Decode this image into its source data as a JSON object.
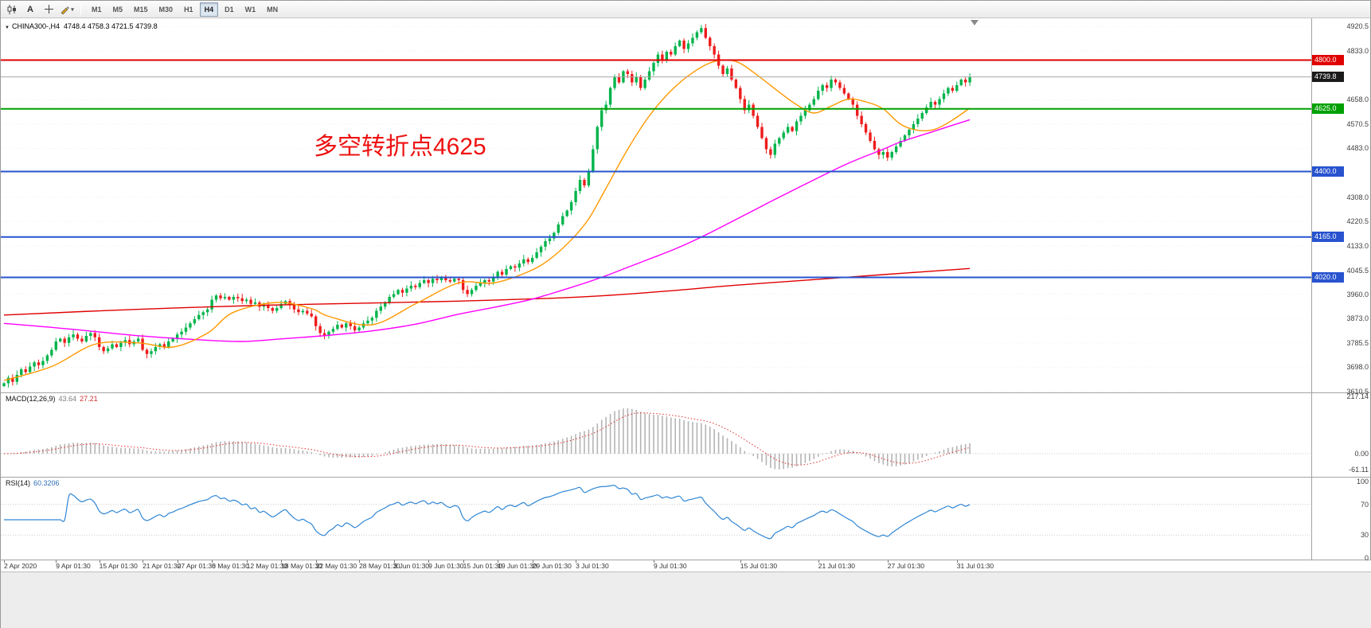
{
  "toolbar": {
    "tools": [
      {
        "name": "chart-type",
        "label": ""
      },
      {
        "name": "text-label",
        "label": "A"
      },
      {
        "name": "crosshair",
        "label": ""
      },
      {
        "name": "draw",
        "label": ""
      }
    ],
    "timeframes": [
      {
        "label": "M1",
        "active": false
      },
      {
        "label": "M5",
        "active": false
      },
      {
        "label": "M15",
        "active": false
      },
      {
        "label": "M30",
        "active": false
      },
      {
        "label": "H1",
        "active": false
      },
      {
        "label": "H4",
        "active": true
      },
      {
        "label": "D1",
        "active": false
      },
      {
        "label": "W1",
        "active": false
      },
      {
        "label": "MN",
        "active": false
      }
    ]
  },
  "symbol_line": {
    "icon": "▼",
    "symbol": "CHINA300-,H4",
    "ohlc": "4748.4 4758.3 4721.5 4739.8"
  },
  "main_chart": {
    "annotation": {
      "text": "多空转折点4625",
      "color": "#ee1111"
    },
    "hlines": [
      {
        "price": 4800,
        "color": "#e00000",
        "width": 2,
        "badge": "4800.0",
        "badge_bg": "#e00000"
      },
      {
        "price": 4739.8,
        "color": "#a8a8a8",
        "width": 1,
        "badge": "4739.8",
        "badge_bg": "#1a1a1a"
      },
      {
        "price": 4625,
        "color": "#00a000",
        "width": 2,
        "badge": "4625.0",
        "badge_bg": "#00a000"
      },
      {
        "price": 4400,
        "color": "#2753cf",
        "width": 2,
        "badge": "4400.0",
        "badge_bg": "#2753cf"
      },
      {
        "price": 4165,
        "color": "#2753cf",
        "width": 2,
        "badge": "4165.0",
        "badge_bg": "#2753cf"
      },
      {
        "price": 4020,
        "color": "#2753cf",
        "width": 2,
        "badge": "4020.0",
        "badge_bg": "#2753cf"
      }
    ],
    "axis_labels": [
      {
        "text": "4920.5",
        "value": 4920.5
      },
      {
        "text": "4833.0",
        "value": 4833
      },
      {
        "text": "4658.0",
        "value": 4658
      },
      {
        "text": "4570.5",
        "value": 4570.5
      },
      {
        "text": "4483.0",
        "value": 4483
      },
      {
        "text": "4308.0",
        "value": 4308
      },
      {
        "text": "4220.5",
        "value": 4220.5
      },
      {
        "text": "4133.0",
        "value": 4133
      },
      {
        "text": "4045.5",
        "value": 4045.5
      },
      {
        "text": "3960.0",
        "value": 3960
      },
      {
        "text": "3873.0",
        "value": 3873
      },
      {
        "text": "3785.5",
        "value": 3785.5
      },
      {
        "text": "3698.0",
        "value": 3698
      },
      {
        "text": "3610.5",
        "value": 3610.5
      }
    ]
  },
  "macd_panel": {
    "title": "MACD(12,26,9)",
    "value_main": "43.64",
    "value_signal": "27.21",
    "axis": [
      {
        "text": "217.14",
        "value": 217.14
      },
      {
        "text": "0.00",
        "value": 0
      },
      {
        "text": "-61.11",
        "value": -61.11
      }
    ]
  },
  "rsi_panel": {
    "title": "RSI(14)",
    "value": "60.3206",
    "axis": [
      {
        "text": "100",
        "value": 100
      },
      {
        "text": "70",
        "value": 70
      },
      {
        "text": "30",
        "value": 30
      },
      {
        "text": "0",
        "value": 0
      }
    ],
    "levels": [
      70,
      30
    ]
  },
  "chart_data": {
    "type": "candlestick",
    "symbol": "CHINA300-",
    "timeframe": "H4",
    "current_bar": {
      "open": 4748.4,
      "high": 4758.3,
      "low": 4721.5,
      "close": 4739.8
    },
    "y_range": [
      3607,
      4950
    ],
    "up_color": "#00b44b",
    "down_color": "#ee1c1c",
    "first_open": 3630,
    "closes": [
      3640,
      3660,
      3645,
      3670,
      3690,
      3680,
      3700,
      3715,
      3705,
      3720,
      3740,
      3760,
      3790,
      3800,
      3785,
      3805,
      3815,
      3800,
      3790,
      3810,
      3820,
      3805,
      3770,
      3755,
      3765,
      3780,
      3770,
      3785,
      3795,
      3780,
      3790,
      3800,
      3760,
      3745,
      3755,
      3770,
      3780,
      3770,
      3790,
      3800,
      3815,
      3825,
      3840,
      3855,
      3870,
      3885,
      3895,
      3905,
      3940,
      3955,
      3945,
      3950,
      3940,
      3950,
      3945,
      3935,
      3940,
      3925,
      3930,
      3915,
      3920,
      3910,
      3900,
      3910,
      3925,
      3935,
      3920,
      3905,
      3895,
      3900,
      3890,
      3880,
      3845,
      3820,
      3810,
      3825,
      3835,
      3850,
      3840,
      3855,
      3845,
      3830,
      3840,
      3855,
      3865,
      3875,
      3900,
      3915,
      3930,
      3950,
      3960,
      3975,
      3965,
      3980,
      3990,
      3985,
      4000,
      4010,
      4000,
      4015,
      4010,
      4020,
      4010,
      4005,
      4015,
      4010,
      3975,
      3960,
      3975,
      3990,
      4000,
      4010,
      4005,
      4020,
      4040,
      4030,
      4050,
      4060,
      4055,
      4070,
      4085,
      4075,
      4090,
      4110,
      4130,
      4150,
      4160,
      4180,
      4210,
      4240,
      4260,
      4290,
      4330,
      4370,
      4350,
      4400,
      4480,
      4560,
      4620,
      4640,
      4700,
      4740,
      4720,
      4760,
      4750,
      4720,
      4740,
      4700,
      4730,
      4760,
      4790,
      4820,
      4800,
      4830,
      4820,
      4850,
      4870,
      4840,
      4860,
      4880,
      4900,
      4915,
      4880,
      4850,
      4820,
      4780,
      4750,
      4770,
      4730,
      4700,
      4660,
      4620,
      4640,
      4600,
      4560,
      4520,
      4480,
      4460,
      4500,
      4520,
      4540,
      4560,
      4545,
      4580,
      4600,
      4620,
      4640,
      4660,
      4690,
      4710,
      4700,
      4730,
      4720,
      4700,
      4680,
      4660,
      4640,
      4600,
      4570,
      4540,
      4510,
      4480,
      4460,
      4470,
      4450,
      4470,
      4490,
      4510,
      4530,
      4550,
      4570,
      4590,
      4610,
      4630,
      4650,
      4640,
      4660,
      4680,
      4700,
      4690,
      4710,
      4730,
      4720,
      4740
    ],
    "ma_fast": {
      "name": "fast MA",
      "color": "#ff9900",
      "points": [
        [
          0,
          3650
        ],
        [
          11,
          3700
        ],
        [
          21,
          3780
        ],
        [
          31,
          3785
        ],
        [
          39,
          3770
        ],
        [
          47,
          3820
        ],
        [
          53,
          3895
        ],
        [
          63,
          3930
        ],
        [
          71,
          3908
        ],
        [
          75,
          3880
        ],
        [
          85,
          3850
        ],
        [
          95,
          3925
        ],
        [
          105,
          4000
        ],
        [
          113,
          4000
        ],
        [
          121,
          4040
        ],
        [
          126,
          4085
        ],
        [
          131,
          4155
        ],
        [
          135,
          4230
        ],
        [
          139,
          4340
        ],
        [
          144,
          4480
        ],
        [
          149,
          4600
        ],
        [
          154,
          4690
        ],
        [
          159,
          4755
        ],
        [
          164,
          4795
        ],
        [
          169,
          4795
        ],
        [
          174,
          4745
        ],
        [
          179,
          4685
        ],
        [
          183,
          4640
        ],
        [
          187,
          4610
        ],
        [
          191,
          4635
        ],
        [
          195,
          4660
        ],
        [
          199,
          4650
        ],
        [
          203,
          4625
        ],
        [
          207,
          4570
        ],
        [
          211,
          4548
        ],
        [
          215,
          4552
        ],
        [
          219,
          4585
        ],
        [
          223,
          4628
        ]
      ]
    },
    "ma_mid": {
      "name": "mid MA",
      "color": "#ff00ff",
      "points": [
        [
          0,
          3855
        ],
        [
          15,
          3835
        ],
        [
          30,
          3812
        ],
        [
          45,
          3796
        ],
        [
          55,
          3790
        ],
        [
          63,
          3798
        ],
        [
          75,
          3812
        ],
        [
          85,
          3828
        ],
        [
          95,
          3852
        ],
        [
          105,
          3888
        ],
        [
          113,
          3912
        ],
        [
          121,
          3938
        ],
        [
          126,
          3960
        ],
        [
          131,
          3984
        ],
        [
          135,
          4004
        ],
        [
          139,
          4026
        ],
        [
          144,
          4056
        ],
        [
          149,
          4086
        ],
        [
          154,
          4116
        ],
        [
          159,
          4150
        ],
        [
          164,
          4188
        ],
        [
          169,
          4228
        ],
        [
          174,
          4268
        ],
        [
          179,
          4308
        ],
        [
          187,
          4370
        ],
        [
          195,
          4430
        ],
        [
          203,
          4480
        ],
        [
          207,
          4506
        ],
        [
          215,
          4546
        ],
        [
          223,
          4586
        ]
      ]
    },
    "ma_slow": {
      "name": "slow MA",
      "color": "#e00000",
      "points": [
        [
          0,
          3885
        ],
        [
          30,
          3905
        ],
        [
          60,
          3920
        ],
        [
          85,
          3928
        ],
        [
          105,
          3935
        ],
        [
          126,
          3945
        ],
        [
          139,
          3955
        ],
        [
          154,
          3972
        ],
        [
          169,
          3992
        ],
        [
          187,
          4012
        ],
        [
          203,
          4030
        ],
        [
          223,
          4052
        ]
      ]
    },
    "x_labels": [
      {
        "text": "2 Apr 2020",
        "i": 0
      },
      {
        "text": "9 Apr 01:30",
        "i": 12
      },
      {
        "text": "15 Apr 01:30",
        "i": 22
      },
      {
        "text": "21 Apr 01:30",
        "i": 32
      },
      {
        "text": "27 Apr 01:30",
        "i": 40
      },
      {
        "text": "6 May 01:30",
        "i": 48
      },
      {
        "text": "12 May 01:30",
        "i": 56
      },
      {
        "text": "18 May 01:30",
        "i": 64
      },
      {
        "text": "22 May 01:30",
        "i": 72
      },
      {
        "text": "28 May 01:30",
        "i": 82
      },
      {
        "text": "3 Jun 01:30",
        "i": 90
      },
      {
        "text": "9 Jun 01:30",
        "i": 98
      },
      {
        "text": "15 Jun 01:30",
        "i": 106
      },
      {
        "text": "19 Jun 01:30",
        "i": 114
      },
      {
        "text": "29 Jun 01:30",
        "i": 122
      },
      {
        "text": "3 Jul 01:30",
        "i": 132
      },
      {
        "text": "9 Jul 01:30",
        "i": 150
      },
      {
        "text": "15 Jul 01:30",
        "i": 170
      },
      {
        "text": "21 Jul 01:30",
        "i": 188
      },
      {
        "text": "27 Jul 01:30",
        "i": 204
      },
      {
        "text": "31 Jul 01:30",
        "i": 220
      }
    ]
  }
}
